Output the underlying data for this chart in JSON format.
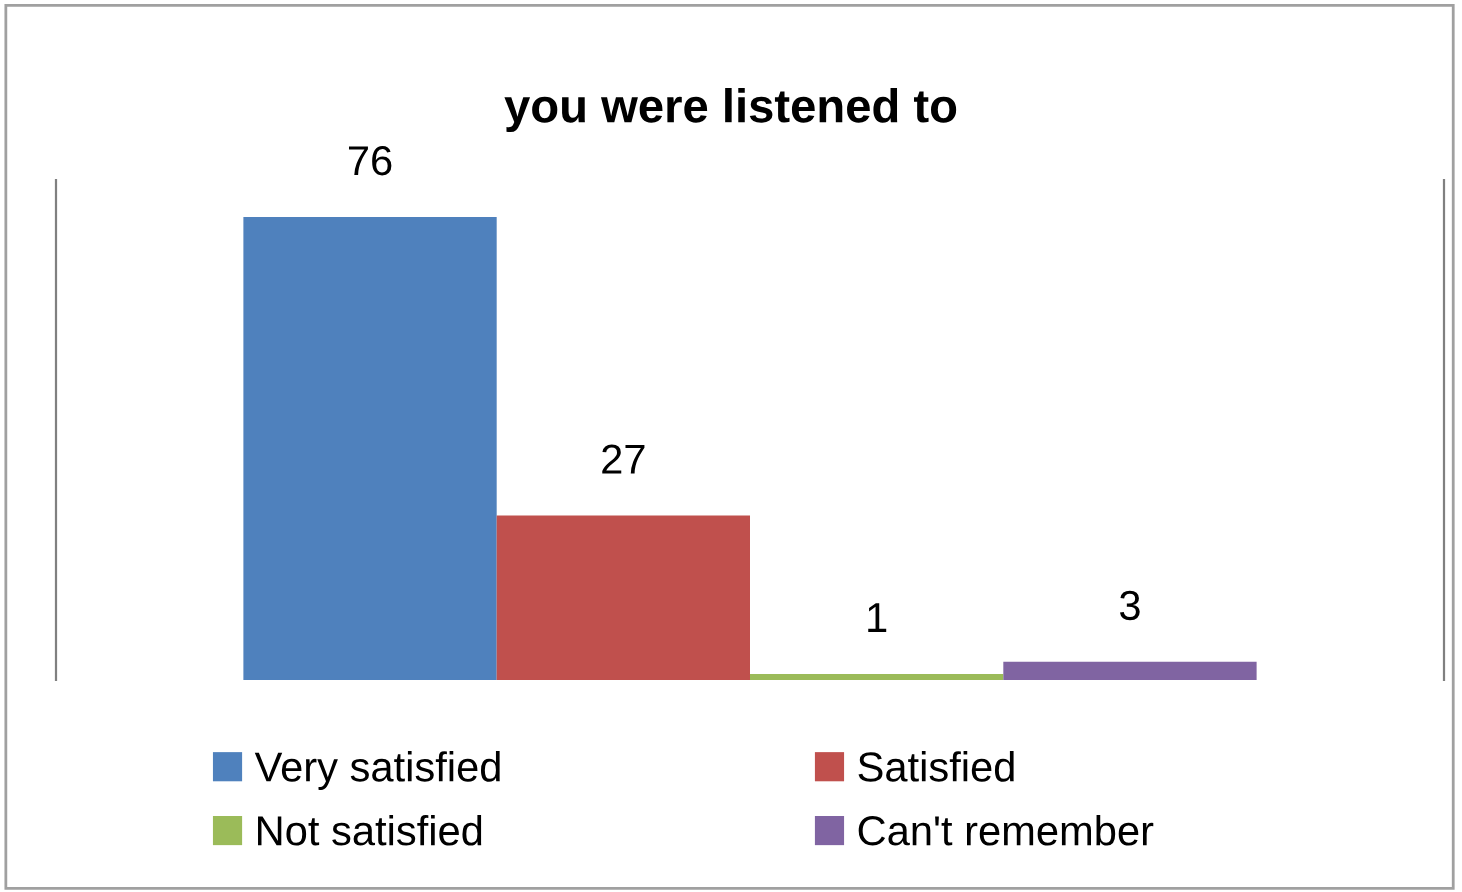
{
  "chart_data": {
    "type": "bar",
    "title": "you were listened to",
    "categories": [
      null
    ],
    "series": [
      {
        "name": "Very satisfied",
        "color": "#4f81bd",
        "values": [
          76
        ]
      },
      {
        "name": "Satisfied",
        "color": "#c0504d",
        "values": [
          27
        ]
      },
      {
        "name": "Not satisfied",
        "color": "#9bbb59",
        "values": [
          1
        ]
      },
      {
        "name": "Can't remember",
        "color": "#8064a2",
        "values": [
          3
        ]
      }
    ],
    "data_labels": true,
    "legend": "bottom",
    "grid": false,
    "tick_labels": false
  }
}
